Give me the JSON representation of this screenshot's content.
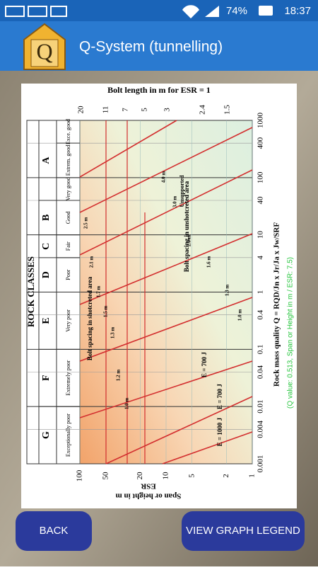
{
  "status_bar": {
    "battery": "74%",
    "time": "18:37"
  },
  "app_bar": {
    "title": "Q-System (tunnelling)"
  },
  "chart": {
    "top_title": "Bolt length in m for ESR = 1",
    "top_ticks": [
      20,
      11,
      7,
      5,
      3,
      2.4,
      1.5
    ],
    "span_ticks": [
      100,
      50,
      20,
      10,
      5,
      2,
      1
    ],
    "q_ticks": [
      0.001,
      0.004,
      0.01,
      0.04,
      0.1,
      0.4,
      1,
      4,
      10,
      40,
      100,
      400,
      1000
    ],
    "rock_classes_title": "ROCK CLASSES",
    "letters": [
      "G",
      "F",
      "E",
      "D",
      "C",
      "B",
      "A"
    ],
    "descriptions": [
      "Exceptionally poor",
      "Extremely poor",
      "Very poor",
      "Poor",
      "Fair",
      "Good",
      "Very good",
      "Extrem. good",
      "Exce. good"
    ],
    "span_label": "Span or height in m",
    "span_label_denominator": "ESR",
    "q_label": "Rock mass quality Q = RQD/Jn x Jr/Ja x Jw/SRF",
    "annotations": [
      "Unsupported",
      "Bolt spacing in unshotcreted area",
      "Bolt spacing in shotcreted area",
      "E = 700 J",
      "E = 700 J",
      "E = 1000 J",
      "4.0 m",
      "3.0 m",
      "2.0 m",
      "1.6 m",
      "1.3 m",
      "1.0 m",
      "2.5 m",
      "2.1 m",
      "1.7 m",
      "1.5 m",
      "1.3 m",
      "1.2 m",
      "1.0 m"
    ],
    "note": "(Q value: 0.513, Span or Height in m / ESR: 7.5)"
  },
  "buttons": {
    "back": "BACK",
    "legend": "VIEW GRAPH LEGEND"
  }
}
